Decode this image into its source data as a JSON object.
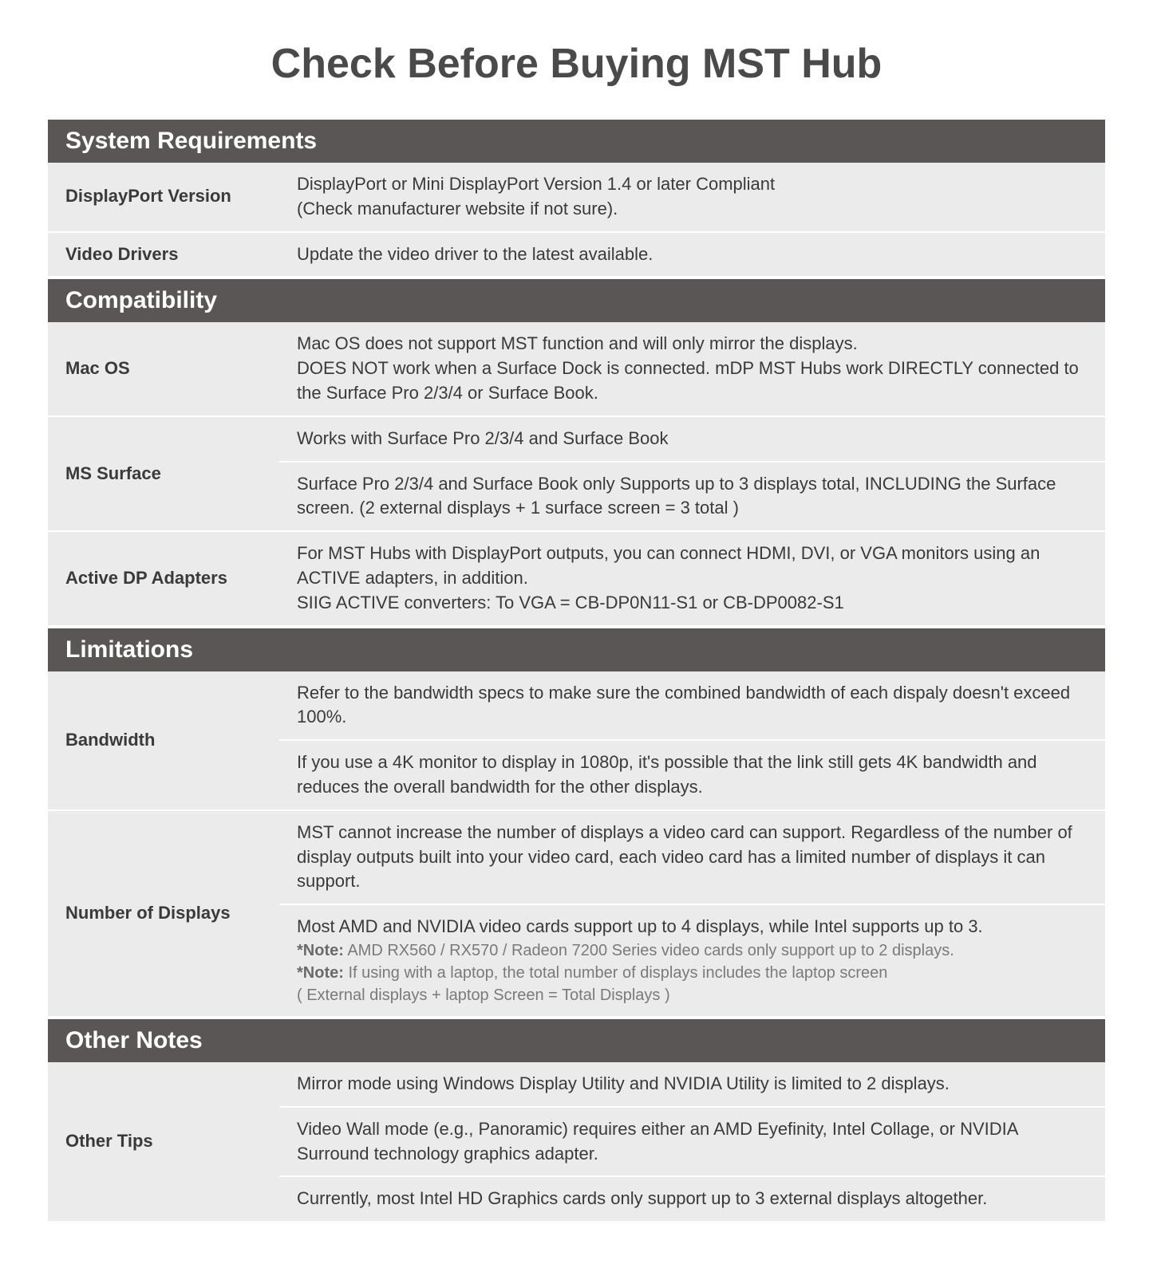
{
  "title": "Check Before Buying MST Hub",
  "colors": {
    "header_bg": "#5a5656",
    "header_text": "#ffffff",
    "row_bg": "#ebebeb",
    "text": "#3a3a3a",
    "note_text": "#7a7a7a",
    "page_bg": "#ffffff"
  },
  "typography": {
    "title_fontsize": 52,
    "header_fontsize": 30,
    "body_fontsize": 22,
    "note_fontsize": 20
  },
  "sections": {
    "system_requirements": {
      "header": "System Requirements",
      "rows": {
        "displayport": {
          "label": "DisplayPort Version",
          "value": "DisplayPort or Mini DisplayPort Version 1.4 or later Compliant\n(Check manufacturer website if not sure)."
        },
        "video_drivers": {
          "label": "Video Drivers",
          "value": "Update the video driver to the latest available."
        }
      }
    },
    "compatibility": {
      "header": "Compatibility",
      "rows": {
        "mac_os": {
          "label": "Mac OS",
          "value": "Mac OS does not support MST function and will only mirror the displays.\nDOES NOT work when a Surface Dock is connected. mDP MST Hubs work DIRECTLY connected to the Surface Pro 2/3/4 or Surface Book."
        },
        "ms_surface": {
          "label": "MS Surface",
          "value1": "Works with Surface Pro 2/3/4 and Surface Book",
          "value2": "Surface Pro 2/3/4 and Surface Book only Supports up to 3 displays total, INCLUDING the Surface screen. (2 external displays + 1 surface screen = 3 total )"
        },
        "active_dp": {
          "label": "Active DP Adapters",
          "value": "For MST Hubs with DisplayPort outputs, you can connect HDMI, DVI, or VGA monitors using an ACTIVE adapters, in addition.\nSIIG ACTIVE converters: To VGA = CB-DP0N11-S1 or CB-DP0082-S1"
        }
      }
    },
    "limitations": {
      "header": "Limitations",
      "rows": {
        "bandwidth": {
          "label": "Bandwidth",
          "value1": "Refer to the bandwidth specs to make sure the combined bandwidth of each dispaly doesn't exceed 100%.",
          "value2": "If you use a 4K monitor to display in 1080p, it's possible that the link still gets 4K bandwidth and reduces the overall bandwidth for the other displays."
        },
        "number_of_displays": {
          "label": "Number of Displays",
          "value1": "MST cannot increase the number of displays a video card can support. Regardless of the number of display outputs built into your video card, each video card has a limited  number of displays it can support.",
          "value2_main": "Most AMD and NVIDIA video cards support up to 4 displays, while Intel supports up to 3.",
          "note1_prefix": "*Note:",
          "note1": " AMD RX560 / RX570 / Radeon 7200 Series video cards only support up to 2 displays.",
          "note2_prefix": "*Note:",
          "note2": " If using with a laptop, the total number of displays includes the laptop screen",
          "note3": " ( External displays + laptop Screen = Total Displays )"
        }
      }
    },
    "other_notes": {
      "header": "Other Notes",
      "rows": {
        "other_tips": {
          "label": "Other Tips",
          "value1": "Mirror mode using Windows Display Utility and NVIDIA Utility is limited to 2 displays.",
          "value2": "Video Wall mode (e.g., Panoramic) requires either an AMD Eyefinity, Intel Collage, or NVIDIA Surround technology graphics adapter.",
          "value3": "Currently, most Intel HD Graphics cards only support up to 3 external displays altogether."
        }
      }
    }
  }
}
